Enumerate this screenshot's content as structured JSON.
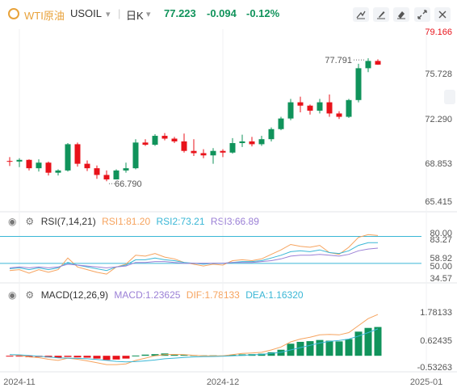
{
  "header": {
    "symbol_name": "WTI原油",
    "symbol_code": "USOIL",
    "period": "日K",
    "price": "77.223",
    "change": "-0.094",
    "change_pct": "-0.12%",
    "tools": [
      "draw-line-icon",
      "brush-icon",
      "eraser-icon",
      "expand-icon",
      "settings-icon"
    ]
  },
  "colors": {
    "up": "#e8121a",
    "down": "#10935b",
    "rsi1": "#f6a35e",
    "rsi2": "#3ab7d6",
    "rsi3": "#9b80d6",
    "macd_line": "#3ab7d6",
    "dif": "#f6a35e"
  },
  "rsi": {
    "title": "RSI(7,14,21)",
    "rsi1": "RSI1:81.20",
    "rsi2": "RSI2:73.21",
    "rsi3": "RSI3:66.89"
  },
  "macd": {
    "title": "MACD(12,26,9)",
    "macd_val": "MACD:1.23625",
    "dif": "DIF:1.78133",
    "dea": "DEA:1.16320"
  },
  "chart_data": [
    {
      "type": "candlestick",
      "series_name": "WTI原油 USOIL 日K",
      "price_axis_ticks": [
        79.166,
        75.728,
        72.29,
        68.853,
        65.415
      ],
      "price_axis_ticks_text": [
        "79.166",
        "75.728",
        "72.290",
        "68.853",
        "65.415"
      ],
      "ylim": [
        64.2,
        80.4
      ],
      "annotations": {
        "high": "77.791",
        "low": "66.790"
      },
      "x_ticks": [
        {
          "index": 1,
          "label": "2024-11"
        },
        {
          "index": 22,
          "label": "2024-12"
        },
        {
          "index": 43,
          "label": "2025-01"
        }
      ],
      "candles": [
        [
          68.6,
          68.95,
          68.15,
          68.55
        ],
        [
          68.55,
          68.85,
          68.05,
          68.7
        ],
        [
          68.7,
          68.75,
          67.75,
          67.95
        ],
        [
          67.95,
          68.75,
          67.65,
          68.45
        ],
        [
          68.45,
          68.55,
          67.3,
          67.55
        ],
        [
          67.55,
          67.85,
          67.3,
          67.75
        ],
        [
          67.75,
          70.2,
          67.65,
          70.1
        ],
        [
          70.1,
          70.25,
          68.1,
          68.35
        ],
        [
          68.35,
          68.65,
          67.7,
          67.95
        ],
        [
          67.95,
          68.2,
          67.0,
          67.35
        ],
        [
          67.35,
          67.75,
          66.79,
          66.95
        ],
        [
          66.95,
          67.85,
          66.95,
          67.75
        ],
        [
          67.75,
          68.45,
          67.55,
          67.95
        ],
        [
          67.95,
          70.55,
          67.85,
          70.25
        ],
        [
          70.25,
          70.55,
          69.95,
          70.05
        ],
        [
          70.05,
          71.0,
          69.95,
          70.85
        ],
        [
          70.85,
          71.1,
          70.45,
          70.6
        ],
        [
          70.6,
          70.75,
          70.2,
          70.35
        ],
        [
          70.35,
          71.05,
          69.35,
          69.5
        ],
        [
          69.5,
          70.55,
          69.05,
          69.3
        ],
        [
          69.3,
          69.65,
          68.85,
          69.1
        ],
        [
          69.1,
          69.75,
          68.35,
          69.5
        ],
        [
          69.5,
          69.65,
          68.95,
          69.35
        ],
        [
          69.35,
          70.65,
          69.25,
          70.2
        ],
        [
          70.2,
          70.95,
          69.85,
          70.35
        ],
        [
          70.35,
          70.75,
          69.9,
          70.1
        ],
        [
          70.1,
          70.85,
          69.95,
          70.55
        ],
        [
          70.55,
          71.6,
          70.35,
          71.45
        ],
        [
          71.45,
          72.55,
          71.35,
          72.4
        ],
        [
          72.4,
          74.15,
          72.25,
          73.85
        ],
        [
          73.85,
          74.35,
          72.95,
          73.55
        ],
        [
          73.55,
          73.65,
          72.75,
          73.1
        ],
        [
          73.1,
          74.15,
          72.85,
          73.85
        ],
        [
          73.85,
          74.55,
          72.55,
          72.85
        ],
        [
          72.85,
          73.05,
          72.35,
          72.55
        ],
        [
          72.55,
          74.15,
          72.45,
          74.05
        ],
        [
          74.05,
          77.3,
          73.85,
          76.9
        ],
        [
          76.9,
          77.79,
          76.55,
          77.55
        ],
        [
          77.55,
          77.7,
          77.2,
          77.22
        ]
      ]
    },
    {
      "type": "line",
      "series_name": "RSI(7,14,21)",
      "axis_ticks_text": [
        "80.00",
        "83.27",
        "58.92",
        "50.00",
        "34.57"
      ],
      "ylim": [
        30,
        85
      ],
      "series": [
        {
          "name": "RSI1",
          "values": [
            42,
            43,
            39,
            43,
            40,
            43,
            56,
            46,
            43,
            40,
            38,
            46,
            49,
            59,
            58,
            61,
            57,
            55,
            51,
            49,
            47,
            49,
            48,
            53,
            54,
            53,
            55,
            60,
            65,
            71,
            69,
            68,
            70,
            62,
            60,
            68,
            79,
            82,
            81
          ]
        },
        {
          "name": "RSI2",
          "values": [
            44,
            45,
            43,
            45,
            43,
            45,
            51,
            48,
            46,
            44,
            42,
            46,
            48,
            54,
            54,
            56,
            54,
            53,
            51,
            50,
            49,
            50,
            50,
            51,
            52,
            52,
            53,
            56,
            59,
            63,
            64,
            63,
            65,
            62,
            61,
            64,
            70,
            73,
            73
          ]
        },
        {
          "name": "RSI3",
          "values": [
            45,
            46,
            45,
            46,
            45,
            46,
            49,
            48,
            47,
            46,
            45,
            46,
            47,
            51,
            51,
            52,
            52,
            51,
            50,
            50,
            50,
            50,
            50,
            51,
            51,
            51,
            52,
            53,
            55,
            58,
            59,
            59,
            60,
            59,
            58,
            60,
            64,
            66,
            67
          ]
        }
      ],
      "reference_lines": [
        80,
        50
      ]
    },
    {
      "type": "bar",
      "series_name": "MACD(12,26,9)",
      "axis_ticks_text": [
        "1.78133",
        "0.62435",
        "-0.53263"
      ],
      "ylim": [
        -0.62,
        2.2
      ],
      "histogram": [
        -0.02,
        -0.03,
        -0.06,
        -0.05,
        -0.07,
        -0.08,
        -0.05,
        -0.07,
        -0.08,
        -0.12,
        -0.18,
        -0.16,
        -0.12,
        0.01,
        0.05,
        0.07,
        0.1,
        0.06,
        0.04,
        0.03,
        0.02,
        0.02,
        0.01,
        0.04,
        0.06,
        0.07,
        0.09,
        0.15,
        0.26,
        0.52,
        0.6,
        0.63,
        0.68,
        0.65,
        0.62,
        0.72,
        1.04,
        1.2,
        1.24
      ],
      "series": [
        {
          "name": "DIF",
          "values": [
            0.05,
            0.02,
            -0.05,
            -0.08,
            -0.15,
            -0.2,
            -0.1,
            -0.15,
            -0.22,
            -0.3,
            -0.38,
            -0.38,
            -0.35,
            -0.2,
            -0.1,
            0.0,
            0.05,
            0.06,
            0.05,
            0.02,
            0.0,
            0.0,
            0.0,
            0.05,
            0.1,
            0.12,
            0.15,
            0.25,
            0.38,
            0.6,
            0.72,
            0.8,
            0.9,
            0.92,
            0.9,
            1.0,
            1.3,
            1.6,
            1.78
          ]
        },
        {
          "name": "DEA",
          "values": [
            0.05,
            0.04,
            0.01,
            -0.02,
            -0.05,
            -0.09,
            -0.1,
            -0.11,
            -0.13,
            -0.16,
            -0.2,
            -0.24,
            -0.26,
            -0.25,
            -0.22,
            -0.18,
            -0.13,
            -0.1,
            -0.07,
            -0.05,
            -0.04,
            -0.03,
            -0.02,
            0.0,
            0.02,
            0.04,
            0.06,
            0.1,
            0.15,
            0.25,
            0.35,
            0.45,
            0.55,
            0.62,
            0.66,
            0.72,
            0.85,
            1.0,
            1.16
          ]
        }
      ]
    }
  ]
}
